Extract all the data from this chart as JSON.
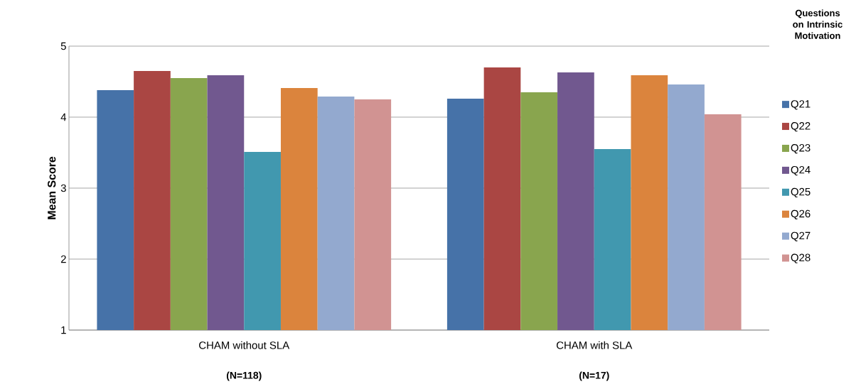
{
  "chart_data": {
    "type": "bar",
    "ylabel": "Mean Score",
    "legend_title": "Questions on Intrinsic Motivation",
    "categories": [
      "CHAM without SLA",
      "CHAM with SLA"
    ],
    "series": [
      {
        "name": "Q21",
        "color": "#4672a8",
        "values": [
          4.38,
          4.26
        ]
      },
      {
        "name": "Q22",
        "color": "#aa4643",
        "values": [
          4.65,
          4.7
        ]
      },
      {
        "name": "Q23",
        "color": "#89a54e",
        "values": [
          4.55,
          4.35
        ]
      },
      {
        "name": "Q24",
        "color": "#71588f",
        "values": [
          4.59,
          4.63
        ]
      },
      {
        "name": "Q25",
        "color": "#4198af",
        "values": [
          3.51,
          3.55
        ]
      },
      {
        "name": "Q26",
        "color": "#db843d",
        "values": [
          4.41,
          4.59
        ]
      },
      {
        "name": "Q27",
        "color": "#93a9cf",
        "values": [
          4.29,
          4.46
        ]
      },
      {
        "name": "Q28",
        "color": "#d19392",
        "values": [
          4.25,
          4.04
        ]
      }
    ],
    "ylim": [
      1,
      5
    ],
    "yticks": [
      1,
      2,
      3,
      4,
      5
    ],
    "grid": "y",
    "legend": "right",
    "annotations": [
      "(N=118)",
      "(N=17)"
    ]
  }
}
